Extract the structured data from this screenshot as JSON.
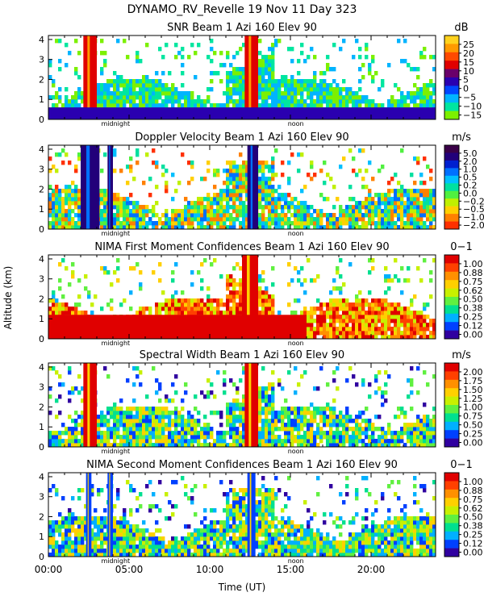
{
  "figure": {
    "title": "DYNAMO_RV_Revelle  19 Nov 11 Day 323",
    "ylabel": "Altitude (km)",
    "xlabel": "Time (UT)",
    "x_ticks": [
      "00:00",
      "05:00",
      "10:00",
      "15:00",
      "20:00"
    ],
    "marker_labels": [
      "midnight",
      "noon"
    ]
  },
  "chart_data": [
    {
      "type": "heatmap",
      "title": "SNR Beam 1 Azi 160 Elev 90",
      "unit": "dB",
      "ylim": [
        0,
        4.2
      ],
      "y_ticks": [
        "0",
        "1",
        "2",
        "3",
        "4"
      ],
      "xlim": [
        "00:00",
        "24:00"
      ],
      "colorbar": {
        "labels": [
          "25",
          "20",
          "15",
          "10",
          "5",
          "0",
          "−5",
          "−10",
          "−15"
        ],
        "colors": [
          "#ffd21e",
          "#ff9a00",
          "#ff4a00",
          "#e00000",
          "#6a006a",
          "#2a00b0",
          "#0046ff",
          "#00b4ff",
          "#00e6a0",
          "#7cf000"
        ]
      },
      "features": [
        {
          "type": "column",
          "t_start": "02:10",
          "t_end": "03:00",
          "top_km": 4.2,
          "value": "10 to 25 dB"
        },
        {
          "type": "column",
          "t_start": "12:10",
          "t_end": "13:00",
          "top_km": 4.2,
          "value": "10 to 25 dB"
        },
        {
          "type": "layer",
          "t_start": "00:00",
          "t_end": "24:00",
          "top_km": 0.6,
          "value": "0 to 10 dB"
        }
      ]
    },
    {
      "type": "heatmap",
      "title": "Doppler Velocity Beam 1 Azi 160 Elev 90",
      "unit": "m/s",
      "ylim": [
        0,
        4.2
      ],
      "y_ticks": [
        "0",
        "1",
        "2",
        "3",
        "4"
      ],
      "xlim": [
        "00:00",
        "24:00"
      ],
      "colorbar": {
        "labels": [
          "5.0",
          "2.0",
          "1.0",
          "0.5",
          "0.2",
          "0.0",
          "−0.2",
          "−0.5",
          "−1.0",
          "−2.0"
        ],
        "colors": [
          "#3a0048",
          "#22007a",
          "#0020d0",
          "#0070ff",
          "#00c0ff",
          "#00e0a0",
          "#50f040",
          "#c0f000",
          "#ffd000",
          "#ff8000",
          "#ff3000"
        ]
      },
      "features": [
        {
          "type": "column",
          "t_start": "02:00",
          "t_end": "03:10",
          "top_km": 4.2,
          "value": "2.0 to 5.0 m/s"
        },
        {
          "type": "column",
          "t_start": "03:40",
          "t_end": "04:00",
          "top_km": 4.2,
          "value": "2.0 to 5.0 m/s"
        },
        {
          "type": "column",
          "t_start": "12:20",
          "t_end": "13:00",
          "top_km": 4.2,
          "value": "2.0 to 5.0 m/s"
        }
      ]
    },
    {
      "type": "heatmap",
      "title": "NIMA First Moment Confidences Beam 1 Azi 160 Elev 90",
      "unit": "0−1",
      "ylim": [
        0,
        4.2
      ],
      "y_ticks": [
        "0",
        "1",
        "2",
        "3",
        "4"
      ],
      "xlim": [
        "00:00",
        "24:00"
      ],
      "colorbar": {
        "labels": [
          "1.00",
          "0.88",
          "0.75",
          "0.62",
          "0.50",
          "0.38",
          "0.25",
          "0.12",
          "0.00"
        ],
        "colors": [
          "#e00000",
          "#ff4000",
          "#ff9000",
          "#ffd000",
          "#c8f000",
          "#60f040",
          "#00e090",
          "#00b0ff",
          "#0040ff",
          "#3000a0"
        ]
      },
      "features": [
        {
          "type": "column",
          "t_start": "12:00",
          "t_end": "13:00",
          "top_km": 4.2,
          "value": "0.88 to 1.00"
        },
        {
          "type": "layer",
          "t_start": "00:00",
          "t_end": "16:00",
          "top_km": 1.2,
          "value": "0.75 to 1.00"
        }
      ]
    },
    {
      "type": "heatmap",
      "title": "Spectral Width Beam 1 Azi 160 Elev 90",
      "unit": "m/s",
      "ylim": [
        0,
        4.2
      ],
      "y_ticks": [
        "0",
        "1",
        "2",
        "3",
        "4"
      ],
      "xlim": [
        "00:00",
        "24:00"
      ],
      "colorbar": {
        "labels": [
          "2.00",
          "1.75",
          "1.50",
          "1.25",
          "1.00",
          "0.75",
          "0.50",
          "0.25",
          "0.00"
        ],
        "colors": [
          "#e00000",
          "#ff4000",
          "#ff9000",
          "#ffd000",
          "#c8f000",
          "#60f040",
          "#00e090",
          "#00b0ff",
          "#0040ff",
          "#3000a0"
        ]
      },
      "features": [
        {
          "type": "column",
          "t_start": "02:10",
          "t_end": "03:00",
          "top_km": 4.2,
          "value": "1.50 to 2.00 m/s"
        },
        {
          "type": "column",
          "t_start": "12:10",
          "t_end": "13:00",
          "top_km": 4.2,
          "value": "1.50 to 2.00 m/s"
        }
      ]
    },
    {
      "type": "heatmap",
      "title": "NIMA Second Moment Confidences Beam 1 Azi 160 Elev 90",
      "unit": "0−1",
      "ylim": [
        0,
        4.2
      ],
      "y_ticks": [
        "0",
        "1",
        "2",
        "3",
        "4"
      ],
      "xlim": [
        "00:00",
        "24:00"
      ],
      "colorbar": {
        "labels": [
          "1.00",
          "0.88",
          "0.75",
          "0.62",
          "0.50",
          "0.38",
          "0.25",
          "0.12",
          "0.00"
        ],
        "colors": [
          "#e00000",
          "#ff4000",
          "#ff9000",
          "#ffd000",
          "#c8f000",
          "#60f040",
          "#00e090",
          "#00b0ff",
          "#0040ff",
          "#3000a0"
        ]
      },
      "features": [
        {
          "type": "column",
          "t_start": "02:20",
          "t_end": "02:40",
          "top_km": 4.2,
          "value": "0.00 to 0.25"
        },
        {
          "type": "column",
          "t_start": "03:40",
          "t_end": "04:00",
          "top_km": 4.2,
          "value": "0.00 to 0.25"
        },
        {
          "type": "column",
          "t_start": "12:20",
          "t_end": "12:50",
          "top_km": 4.2,
          "value": "0.00 to 0.25"
        }
      ]
    }
  ]
}
